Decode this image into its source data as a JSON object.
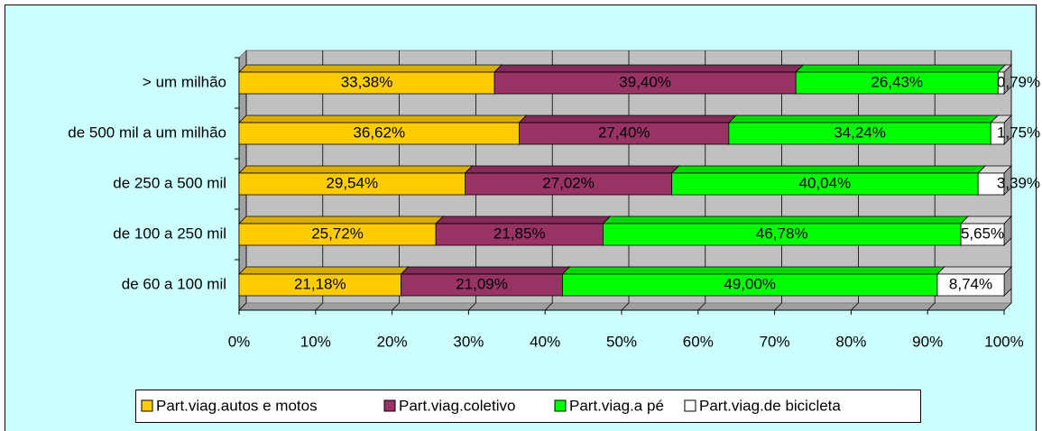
{
  "chart_data": {
    "type": "bar3d_stacked_horizontal",
    "categories": [
      "> um milhão",
      "de 500 mil a um milhão",
      "de 250 a 500 mil",
      "de 100 a 250 mil",
      "de 60 a 100 mil"
    ],
    "series": [
      {
        "name": "Part.viag.autos e motos",
        "color": "#ffcc00",
        "values": [
          33.38,
          36.62,
          29.54,
          25.72,
          21.18
        ],
        "value_labels": [
          "33,38%",
          "36,62%",
          "29,54%",
          "25,72%",
          "21,18%"
        ]
      },
      {
        "name": "Part.viag.coletivo",
        "color": "#993366",
        "values": [
          39.4,
          27.4,
          27.02,
          21.85,
          21.09
        ],
        "value_labels": [
          "39,40%",
          "27,40%",
          "27,02%",
          "21,85%",
          "21,09%"
        ]
      },
      {
        "name": "Part.viag.a pé",
        "color": "#00ff00",
        "values": [
          26.43,
          34.24,
          40.04,
          46.78,
          49.0
        ],
        "value_labels": [
          "26,43%",
          "34,24%",
          "40,04%",
          "46,78%",
          "49,00%"
        ]
      },
      {
        "name": "Part.viag.de bicicleta",
        "color": "#ffffff",
        "values": [
          0.79,
          1.75,
          3.39,
          5.65,
          8.74
        ],
        "value_labels": [
          "0,79%",
          "1,75%",
          "3,39%",
          "5,65%",
          "8,74%"
        ]
      }
    ],
    "xlim": [
      0,
      100
    ],
    "xticks": [
      {
        "value": 0,
        "label": "0%"
      },
      {
        "value": 10,
        "label": "10%"
      },
      {
        "value": 20,
        "label": "20%"
      },
      {
        "value": 30,
        "label": "30%"
      },
      {
        "value": 40,
        "label": "40%"
      },
      {
        "value": 50,
        "label": "50%"
      },
      {
        "value": 60,
        "label": "60%"
      },
      {
        "value": 70,
        "label": "70%"
      },
      {
        "value": 80,
        "label": "80%"
      },
      {
        "value": 90,
        "label": "90%"
      },
      {
        "value": 100,
        "label": "100%"
      }
    ],
    "grid": true,
    "legend": "bottom"
  }
}
